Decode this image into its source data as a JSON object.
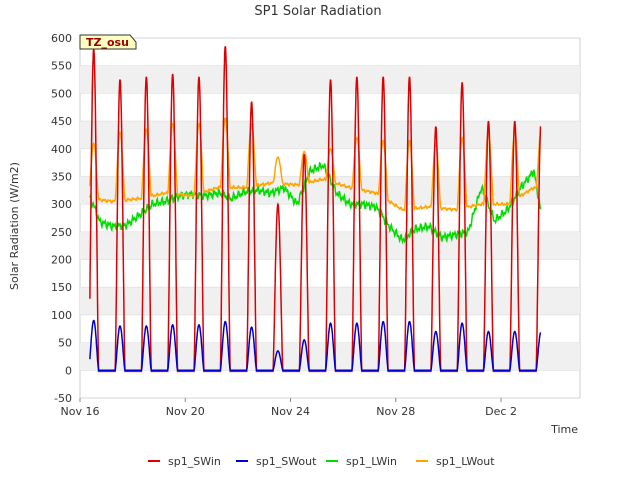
{
  "chart_data": {
    "type": "line",
    "title": "SP1 Solar Radiation",
    "xlabel": "Time",
    "ylabel": "Solar Radiation (W/m2)",
    "badge": "TZ_osu",
    "ylim": [
      -50,
      600
    ],
    "yticks": [
      -50,
      0,
      50,
      100,
      150,
      200,
      250,
      300,
      350,
      400,
      450,
      500,
      550,
      600
    ],
    "xlim": [
      "2017-11-16",
      "2017-12-05"
    ],
    "xticks": [
      {
        "date": "2017-11-16",
        "label": "Nov 16"
      },
      {
        "date": "2017-11-20",
        "label": "Nov 20"
      },
      {
        "date": "2017-11-24",
        "label": "Nov 24"
      },
      {
        "date": "2017-11-28",
        "label": "Nov 28"
      },
      {
        "date": "2017-12-02",
        "label": "Dec 2"
      }
    ],
    "grid": "horizontal bands",
    "legend_position": "bottom",
    "x_range_shown": [
      "2017-11-16T09:00",
      "2017-12-03T12:00"
    ],
    "series": [
      {
        "name": "sp1_SWin",
        "color": "#dd0000",
        "daily_peak": [
          580,
          525,
          530,
          535,
          530,
          585,
          485,
          300,
          390,
          525,
          530,
          530,
          530,
          440,
          520,
          450
        ],
        "sunrise_hour": 8,
        "sunset_hour": 17,
        "night_value": -2
      },
      {
        "name": "sp1_SWout",
        "color": "#0000cc",
        "daily_peak": [
          90,
          80,
          80,
          82,
          82,
          88,
          78,
          35,
          55,
          85,
          85,
          88,
          88,
          70,
          85,
          70
        ],
        "sunrise_hour": 8,
        "sunset_hour": 17,
        "night_value": 0
      },
      {
        "name": "sp1_LWin",
        "color": "#00dd00",
        "points": [
          [
            "2017-11-16T09:00",
            310
          ],
          [
            "2017-11-16T12:00",
            300
          ],
          [
            "2017-11-16T18:00",
            268
          ],
          [
            "2017-11-17T06:00",
            260
          ],
          [
            "2017-11-17T18:00",
            262
          ],
          [
            "2017-11-18T06:00",
            280
          ],
          [
            "2017-11-18T18:00",
            300
          ],
          [
            "2017-11-19T06:00",
            305
          ],
          [
            "2017-11-19T18:00",
            315
          ],
          [
            "2017-11-20T06:00",
            318
          ],
          [
            "2017-11-20T18:00",
            315
          ],
          [
            "2017-11-21T06:00",
            320
          ],
          [
            "2017-11-21T18:00",
            310
          ],
          [
            "2017-11-22T06:00",
            322
          ],
          [
            "2017-11-22T18:00",
            325
          ],
          [
            "2017-11-23T06:00",
            320
          ],
          [
            "2017-11-23T18:00",
            330
          ],
          [
            "2017-11-24T06:00",
            300
          ],
          [
            "2017-11-24T18:00",
            360
          ],
          [
            "2017-11-25T06:00",
            370
          ],
          [
            "2017-11-25T18:00",
            320
          ],
          [
            "2017-11-26T06:00",
            300
          ],
          [
            "2017-11-26T18:00",
            300
          ],
          [
            "2017-11-27T06:00",
            295
          ],
          [
            "2017-11-27T18:00",
            260
          ],
          [
            "2017-11-28T06:00",
            235
          ],
          [
            "2017-11-28T18:00",
            255
          ],
          [
            "2017-11-29T06:00",
            260
          ],
          [
            "2017-11-29T18:00",
            240
          ],
          [
            "2017-11-30T06:00",
            245
          ],
          [
            "2017-11-30T18:00",
            250
          ],
          [
            "2017-12-01T06:00",
            330
          ],
          [
            "2017-12-01T18:00",
            270
          ],
          [
            "2017-12-02T06:00",
            290
          ],
          [
            "2017-12-02T18:00",
            330
          ],
          [
            "2017-12-03T06:00",
            360
          ],
          [
            "2017-12-03T12:00",
            290
          ]
        ]
      },
      {
        "name": "sp1_LWout",
        "color": "#ffa500",
        "daily_peak": [
          410,
          430,
          435,
          445,
          445,
          455,
          445,
          385,
          395,
          400,
          420,
          415,
          415,
          410,
          420,
          430
        ],
        "night_points": [
          [
            "2017-11-16T09:00",
            310
          ],
          [
            "2017-11-17T06:00",
            305
          ],
          [
            "2017-11-18T06:00",
            310
          ],
          [
            "2017-11-19T06:00",
            320
          ],
          [
            "2017-11-20T06:00",
            315
          ],
          [
            "2017-11-21T06:00",
            330
          ],
          [
            "2017-11-22T06:00",
            330
          ],
          [
            "2017-11-23T06:00",
            338
          ],
          [
            "2017-11-24T06:00",
            335
          ],
          [
            "2017-11-25T06:00",
            345
          ],
          [
            "2017-11-26T06:00",
            330
          ],
          [
            "2017-11-27T06:00",
            320
          ],
          [
            "2017-11-28T06:00",
            290
          ],
          [
            "2017-11-29T06:00",
            295
          ],
          [
            "2017-11-30T06:00",
            290
          ],
          [
            "2017-12-01T06:00",
            300
          ],
          [
            "2017-12-02T06:00",
            300
          ],
          [
            "2017-12-03T06:00",
            330
          ],
          [
            "2017-12-03T12:00",
            325
          ]
        ]
      }
    ]
  }
}
